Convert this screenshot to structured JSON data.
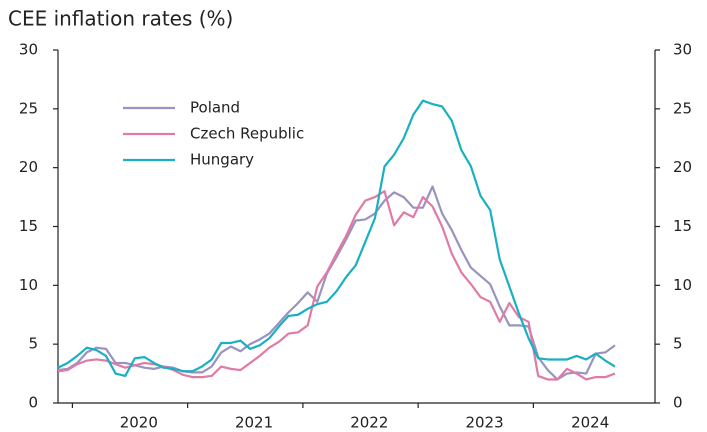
{
  "chart_data": {
    "type": "line",
    "title": "CEE inflation rates (%)",
    "categories": [
      null,
      null,
      null,
      null,
      null,
      null,
      null,
      null,
      "2020",
      null,
      null,
      null,
      null,
      null,
      null,
      null,
      null,
      null,
      null,
      null,
      "2021",
      null,
      null,
      null,
      null,
      null,
      null,
      null,
      null,
      null,
      null,
      null,
      "2022",
      null,
      null,
      null,
      null,
      null,
      null,
      null,
      null,
      null,
      null,
      null,
      "2023",
      null,
      null,
      null,
      null,
      null,
      null,
      null,
      null,
      null,
      null,
      "2024",
      null,
      null,
      null
    ],
    "series": [
      {
        "name": "Poland",
        "color": "#9993bf",
        "values": [
          2.8,
          2.9,
          3.4,
          4.3,
          4.7,
          4.6,
          3.4,
          3.4,
          3.2,
          3.0,
          2.9,
          3.1,
          3.0,
          2.7,
          2.6,
          2.6,
          3.1,
          4.3,
          4.8,
          4.4,
          5.0,
          5.4,
          5.9,
          6.8,
          7.7,
          8.5,
          9.4,
          8.6,
          11.0,
          12.4,
          13.9,
          15.5,
          15.6,
          16.1,
          17.2,
          17.9,
          17.5,
          16.6,
          16.6,
          18.4,
          16.1,
          14.7,
          13.0,
          11.5,
          10.8,
          10.1,
          8.2,
          6.6,
          6.6,
          6.5,
          3.9,
          2.8,
          2.0,
          2.5,
          2.6,
          2.5,
          4.2,
          4.3,
          4.9
        ]
      },
      {
        "name": "Czech Republic",
        "color": "#e07aa6",
        "values": [
          2.7,
          2.8,
          3.3,
          3.6,
          3.7,
          3.6,
          3.3,
          3.0,
          3.2,
          3.4,
          3.3,
          3.1,
          2.8,
          2.4,
          2.2,
          2.2,
          2.3,
          3.1,
          2.9,
          2.8,
          3.4,
          4.0,
          4.7,
          5.2,
          5.9,
          6.0,
          6.6,
          9.9,
          11.1,
          12.7,
          14.2,
          16.0,
          17.2,
          17.5,
          18.0,
          15.1,
          16.2,
          15.8,
          17.5,
          16.7,
          15.0,
          12.7,
          11.1,
          10.1,
          9.0,
          8.6,
          6.9,
          8.5,
          7.3,
          6.9,
          2.3,
          2.0,
          2.0,
          2.9,
          2.5,
          2.0,
          2.2,
          2.2,
          2.5
        ]
      },
      {
        "name": "Hungary",
        "color": "#1ab0c4",
        "values": [
          3.0,
          3.4,
          4.0,
          4.7,
          4.5,
          4.0,
          2.5,
          2.3,
          3.8,
          3.9,
          3.4,
          3.0,
          2.9,
          2.7,
          2.7,
          3.1,
          3.7,
          5.1,
          5.1,
          5.3,
          4.6,
          4.9,
          5.5,
          6.5,
          7.4,
          7.5,
          8.0,
          8.4,
          8.6,
          9.5,
          10.7,
          11.7,
          13.7,
          15.7,
          20.1,
          21.1,
          22.5,
          24.5,
          25.7,
          25.4,
          25.2,
          24.0,
          21.5,
          20.1,
          17.6,
          16.4,
          12.2,
          9.9,
          7.6,
          5.5,
          3.8,
          3.7,
          3.7,
          3.7,
          4.0,
          3.7,
          4.2,
          3.6,
          3.1
        ]
      }
    ],
    "ylim": [
      0,
      30
    ],
    "yticks": [
      0,
      5,
      10,
      15,
      20,
      25,
      30
    ],
    "y2lim": [
      0,
      30
    ],
    "y2ticks": [
      0,
      5,
      10,
      15,
      20,
      25,
      30
    ]
  }
}
